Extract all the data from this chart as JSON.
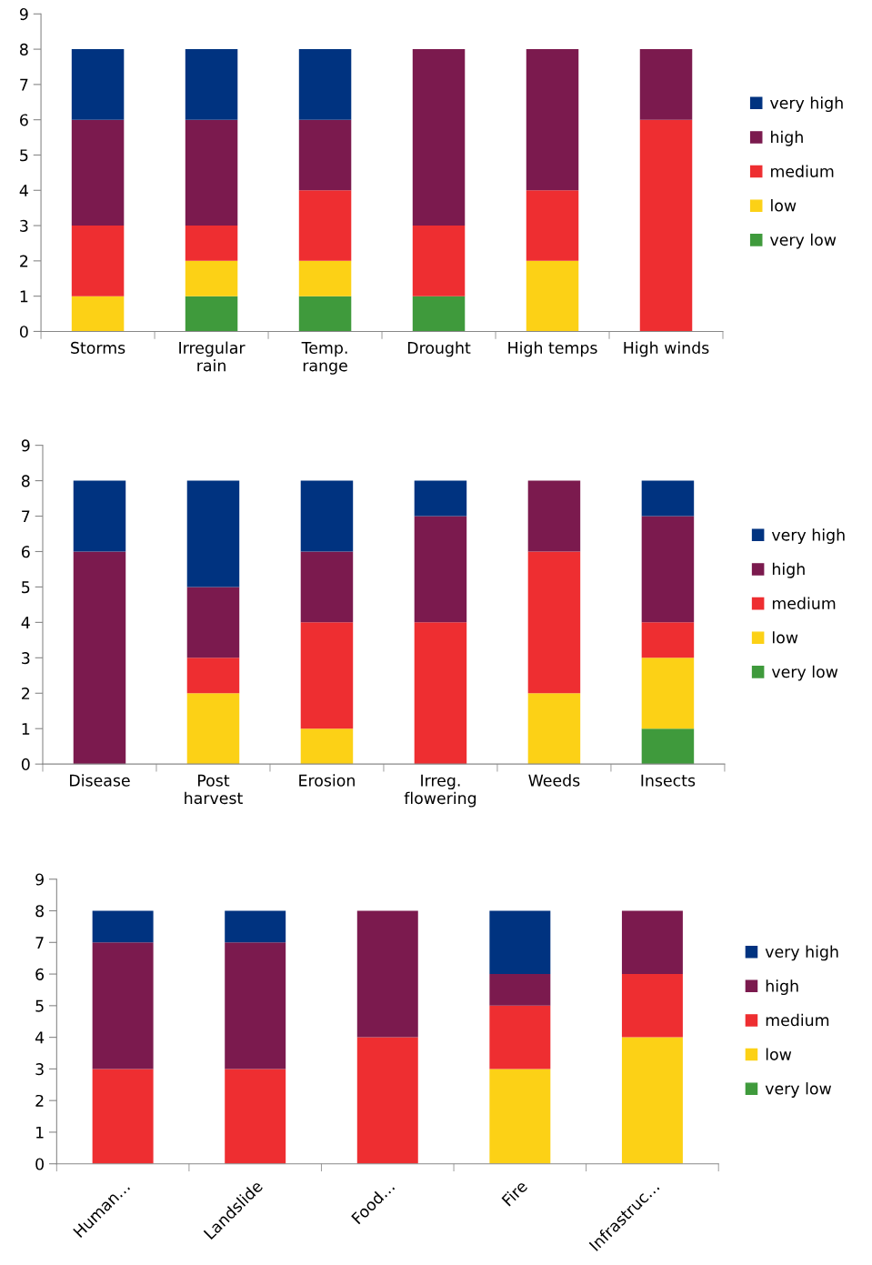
{
  "chart_data": [
    {
      "type": "bar",
      "stacked": true,
      "categories": [
        "Storms",
        "Irregular\nrain",
        "Temp.\nrange",
        "Drought",
        "High temps",
        "High winds"
      ],
      "ylim": [
        0,
        9
      ],
      "yticks": [
        0,
        1,
        2,
        3,
        4,
        5,
        6,
        7,
        8,
        9
      ],
      "grid": false,
      "legend": "right",
      "series": [
        {
          "name": "very low",
          "color": "#3f9a3c",
          "values": [
            0,
            1,
            1,
            1,
            0,
            0
          ]
        },
        {
          "name": "low",
          "color": "#fcd116",
          "values": [
            1,
            1,
            1,
            0,
            2,
            0
          ]
        },
        {
          "name": "medium",
          "color": "#ee2e31",
          "values": [
            2,
            1,
            2,
            2,
            2,
            6
          ]
        },
        {
          "name": "high",
          "color": "#7b1a4e",
          "values": [
            3,
            3,
            2,
            5,
            4,
            2
          ]
        },
        {
          "name": "very high",
          "color": "#003380",
          "values": [
            2,
            2,
            2,
            0,
            0,
            0
          ]
        }
      ]
    },
    {
      "type": "bar",
      "stacked": true,
      "categories": [
        "Disease",
        "Post\nharvest",
        "Erosion",
        "Irreg.\nflowering",
        "Weeds",
        "Insects"
      ],
      "ylim": [
        0,
        9
      ],
      "yticks": [
        0,
        1,
        2,
        3,
        4,
        5,
        6,
        7,
        8,
        9
      ],
      "grid": false,
      "legend": "right",
      "series": [
        {
          "name": "very low",
          "color": "#3f9a3c",
          "values": [
            0,
            0,
            0,
            0,
            0,
            1
          ]
        },
        {
          "name": "low",
          "color": "#fcd116",
          "values": [
            0,
            2,
            1,
            0,
            2,
            2
          ]
        },
        {
          "name": "medium",
          "color": "#ee2e31",
          "values": [
            0,
            1,
            3,
            4,
            4,
            1
          ]
        },
        {
          "name": "high",
          "color": "#7b1a4e",
          "values": [
            6,
            2,
            2,
            3,
            2,
            3
          ]
        },
        {
          "name": "very high",
          "color": "#003380",
          "values": [
            2,
            3,
            2,
            1,
            0,
            1
          ]
        }
      ]
    },
    {
      "type": "bar",
      "stacked": true,
      "categories": [
        "Human…",
        "Landslide",
        "Food…",
        "Fire",
        "Infrastruc…"
      ],
      "ylim": [
        0,
        9
      ],
      "yticks": [
        0,
        1,
        2,
        3,
        4,
        5,
        6,
        7,
        8,
        9
      ],
      "grid": false,
      "legend": "right",
      "series": [
        {
          "name": "very low",
          "color": "#3f9a3c",
          "values": [
            0,
            0,
            0,
            0,
            0
          ]
        },
        {
          "name": "low",
          "color": "#fcd116",
          "values": [
            0,
            0,
            0,
            3,
            4
          ]
        },
        {
          "name": "medium",
          "color": "#ee2e31",
          "values": [
            3,
            3,
            4,
            2,
            2
          ]
        },
        {
          "name": "high",
          "color": "#7b1a4e",
          "values": [
            4,
            4,
            4,
            1,
            2
          ]
        },
        {
          "name": "very high",
          "color": "#003380",
          "values": [
            1,
            1,
            0,
            2,
            0
          ]
        }
      ]
    }
  ]
}
